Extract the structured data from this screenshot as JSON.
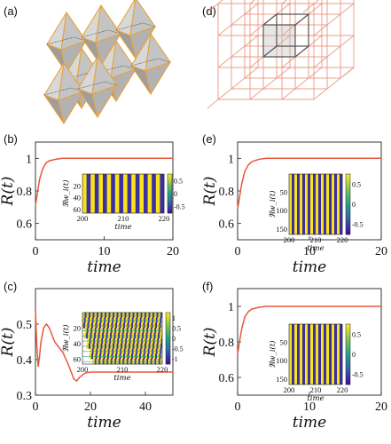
{
  "panel_labels": [
    "(a)",
    "(b)",
    "(c)",
    "(d)",
    "(e)",
    "(f)"
  ],
  "colors": {
    "curve": "#e8583a",
    "octa_edge": "#e8a23a",
    "lattice_edge": "#e8907a",
    "inset_yellow": "#f7e21b",
    "inset_blue": "#3b2fa4",
    "cb_top": "#f9e721",
    "cb_mid": "#21a38b",
    "cb_bot": "#3e12a0"
  },
  "chart_data": [
    {
      "panel": "(b)",
      "type": "line",
      "xlabel": "time",
      "ylabel": "R(t)",
      "xlim": [
        0,
        20
      ],
      "ylim": [
        0.5,
        1.1
      ],
      "xticks": [
        "0",
        "10",
        "20"
      ],
      "yticks": [
        "0.6",
        "0.8",
        "1"
      ],
      "series": [
        {
          "x": [
            0,
            0.3,
            0.6,
            1,
            1.5,
            2,
            3,
            4,
            6,
            10,
            20
          ],
          "y": [
            0.71,
            0.79,
            0.87,
            0.93,
            0.97,
            0.985,
            0.995,
            1.0,
            1.0,
            1.0,
            1.0
          ]
        }
      ],
      "inset": {
        "xlabel": "time",
        "ylabel": "ℜw_i(t)",
        "xticks": [
          "200",
          "210",
          "220"
        ],
        "yticks": [
          "20",
          "40",
          "60"
        ],
        "cbticks": [
          "0.5",
          "0",
          "-0.5"
        ],
        "pattern": "stripes",
        "stripes": 20
      }
    },
    {
      "panel": "(c)",
      "type": "line",
      "xlabel": "time",
      "ylabel": "R(t)",
      "xlim": [
        0,
        50
      ],
      "ylim": [
        0.3,
        0.6
      ],
      "xticks": [
        "0",
        "20",
        "40"
      ],
      "yticks": [
        "0.3",
        "0.4",
        "0.5"
      ],
      "series": [
        {
          "x": [
            0,
            0.5,
            1,
            1.5,
            2,
            3,
            4,
            5,
            6,
            7,
            8,
            10,
            12,
            14,
            15,
            16,
            18,
            20,
            25,
            30,
            50
          ],
          "y": [
            0.54,
            0.44,
            0.38,
            0.41,
            0.45,
            0.49,
            0.5,
            0.49,
            0.47,
            0.45,
            0.44,
            0.42,
            0.385,
            0.345,
            0.34,
            0.35,
            0.362,
            0.365,
            0.365,
            0.365,
            0.365
          ]
        }
      ],
      "inset": {
        "xlabel": "time",
        "ylabel": "ℜw_i(t)",
        "xticks": [
          "200",
          "210",
          "220"
        ],
        "yticks": [
          "20",
          "40",
          "60"
        ],
        "cbticks": [
          "1",
          "0.5",
          "0",
          "-0.5",
          "-1"
        ],
        "pattern": "diagonal",
        "stripes": 20
      }
    },
    {
      "panel": "(e)",
      "type": "line",
      "xlabel": "time",
      "ylabel": "R(t)",
      "xlim": [
        0,
        20
      ],
      "ylim": [
        0.5,
        1.1
      ],
      "xticks": [
        "0",
        "10",
        "20"
      ],
      "yticks": [
        "0.6",
        "0.8",
        "1"
      ],
      "series": [
        {
          "x": [
            0,
            0.3,
            0.6,
            1,
            1.5,
            2,
            3,
            4,
            6,
            10,
            20
          ],
          "y": [
            0.69,
            0.77,
            0.85,
            0.92,
            0.96,
            0.98,
            0.995,
            1.0,
            1.0,
            1.0,
            1.0
          ]
        }
      ],
      "inset": {
        "xlabel": "time",
        "ylabel": "ℜw_i(t)",
        "xticks": [
          "200",
          "210",
          "220"
        ],
        "yticks": [
          "50",
          "100",
          "150"
        ],
        "cbticks": [
          "0.5",
          "0",
          "-0.5"
        ],
        "pattern": "stripes",
        "stripes": 20
      }
    },
    {
      "panel": "(f)",
      "type": "line",
      "xlabel": "time",
      "ylabel": "R(t)",
      "xlim": [
        0,
        20
      ],
      "ylim": [
        0.5,
        1.1
      ],
      "xticks": [
        "0",
        "10",
        "20"
      ],
      "yticks": [
        "0.6",
        "0.8",
        "1"
      ],
      "series": [
        {
          "x": [
            0,
            0.3,
            0.6,
            1,
            1.5,
            2,
            3,
            4,
            6,
            10,
            20
          ],
          "y": [
            0.73,
            0.81,
            0.88,
            0.94,
            0.97,
            0.985,
            0.995,
            1.0,
            1.0,
            1.0,
            1.0
          ]
        }
      ],
      "inset": {
        "xlabel": "time",
        "ylabel": "ℜw_i(t)",
        "xticks": [
          "200",
          "210",
          "220"
        ],
        "yticks": [
          "50",
          "100",
          "150"
        ],
        "cbticks": [
          "0.5",
          "0",
          "-0.5"
        ],
        "pattern": "stripes",
        "stripes": 20
      }
    }
  ]
}
